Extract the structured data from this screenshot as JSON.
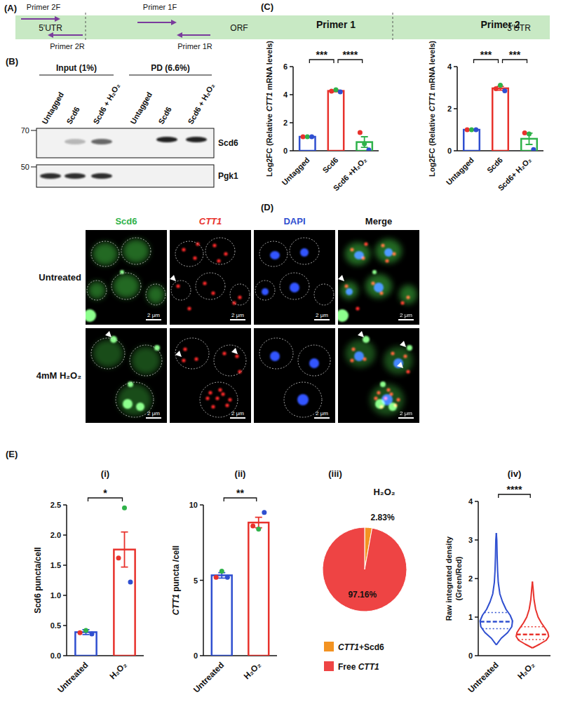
{
  "panels": {
    "A": {
      "letter": "(A)",
      "regions": [
        "5'UTR",
        "ORF",
        "3'UTR"
      ],
      "primers": [
        "Primer 2F",
        "Primer 1F",
        "Primer 2R",
        "Primer 1R"
      ]
    },
    "B": {
      "letter": "(B)",
      "groups": [
        {
          "label": "Input (1%)",
          "lanes": [
            "Untagged",
            "Scd6",
            "Scd6 + H₂O₂"
          ]
        },
        {
          "label": "PD (6.6%)",
          "lanes": [
            "Untagged",
            "Scd6",
            "Scd6 + H₂O₂"
          ]
        }
      ],
      "markers": [
        70,
        50
      ],
      "blots": [
        "Scd6",
        "Pgk1"
      ]
    },
    "C": {
      "letter": "(C)"
    },
    "D": {
      "letter": "(D)",
      "columns": [
        "Scd6",
        "CTT1",
        "DAPI",
        "Merge"
      ],
      "rows": [
        "Untreated",
        "4mM H₂O₂"
      ],
      "scale_bar": "2 μm"
    },
    "E": {
      "letter": "(E)"
    }
  },
  "chart_data": [
    {
      "type": "bar",
      "title": "Primer 1",
      "y_label": "Log2FC (Relative CTT1 mRNA levels)",
      "categories": [
        "Untagged",
        "Scd6",
        "Scd6 +H₂O₂"
      ],
      "values": [
        1,
        4.27,
        0.62
      ],
      "errors": [
        0.01,
        0.06,
        0.38
      ],
      "colors": [
        "#2f4fd0",
        "#e8322c",
        "#2fb24a"
      ],
      "replicates": [
        {
          "color": "#e8322c",
          "values": [
            1,
            4.25,
            1.3
          ]
        },
        {
          "color": "#2fb24a",
          "values": [
            1,
            4.35,
            0.5
          ]
        },
        {
          "color": "#2f4fd0",
          "values": [
            1,
            4.2,
            0.06
          ]
        }
      ],
      "ylim": [
        0,
        6
      ],
      "yticks": [
        0,
        2,
        4,
        6
      ],
      "annotations": [
        {
          "text": "***",
          "between": [
            "Untagged",
            "Scd6"
          ]
        },
        {
          "text": "****",
          "between": [
            "Scd6",
            "Scd6 +H₂O₂"
          ]
        }
      ]
    },
    {
      "type": "bar",
      "title": "Primer 2",
      "y_label": "Log2FC (Relative CTT1 mRNA levels)",
      "categories": [
        "Untagged",
        "Scd6",
        "Scd6+ H₂O₂"
      ],
      "values": [
        1,
        2.97,
        0.57
      ],
      "errors": [
        0.01,
        0.09,
        0.27
      ],
      "colors": [
        "#2f4fd0",
        "#e8322c",
        "#2fb24a"
      ],
      "replicates": [
        {
          "color": "#e8322c",
          "values": [
            1,
            2.95,
            0.85
          ]
        },
        {
          "color": "#2fb24a",
          "values": [
            1,
            3.12,
            0.8
          ]
        },
        {
          "color": "#2f4fd0",
          "values": [
            1,
            2.85,
            0.06
          ]
        }
      ],
      "ylim": [
        0,
        4
      ],
      "yticks": [
        0,
        2,
        4
      ],
      "annotations": [
        {
          "text": "***",
          "between": [
            "Untagged",
            "Scd6"
          ]
        },
        {
          "text": "***",
          "between": [
            "Scd6",
            "Scd6+ H₂O₂"
          ]
        }
      ]
    },
    {
      "type": "bar",
      "title": "(i)",
      "y_label": "Scd6 puncta/cell",
      "categories": [
        "Untreated",
        "H₂O₂"
      ],
      "values": [
        0.39,
        1.76
      ],
      "errors": [
        0.04,
        0.29
      ],
      "colors": [
        "#2f4fd0",
        "#e8322c"
      ],
      "replicates": [
        {
          "color": "#e8322c",
          "values": [
            0.38,
            1.62
          ]
        },
        {
          "color": "#2fb24a",
          "values": [
            0.42,
            2.45
          ]
        },
        {
          "color": "#2f4fd0",
          "values": [
            0.36,
            1.22
          ]
        }
      ],
      "ylim": [
        0,
        2.5
      ],
      "yticks": [
        {
          "value": 0,
          "label": "0.0"
        },
        0.5,
        {
          "value": 1,
          "label": "1.0"
        },
        1.5,
        {
          "value": 2,
          "label": "2.0"
        },
        2.5
      ],
      "annotations": [
        {
          "text": "*",
          "between": [
            "Untreated",
            "H₂O₂"
          ]
        }
      ]
    },
    {
      "type": "bar",
      "title": "(ii)",
      "y_label": "CTT1 puncta /cell",
      "categories": [
        "Untreated",
        "H₂O₂"
      ],
      "values": [
        5.33,
        8.83
      ],
      "errors": [
        0.18,
        0.35
      ],
      "colors": [
        "#2f4fd0",
        "#e8322c"
      ],
      "replicates": [
        {
          "color": "#e8322c",
          "values": [
            5.2,
            8.6
          ]
        },
        {
          "color": "#2fb24a",
          "values": [
            5.6,
            8.4
          ]
        },
        {
          "color": "#2f4fd0",
          "values": [
            5.2,
            9.5
          ]
        }
      ],
      "ylim": [
        0,
        10
      ],
      "yticks": [
        0,
        5,
        10
      ],
      "annotations": [
        {
          "text": "**",
          "between": [
            "Untreated",
            "H₂O₂"
          ]
        }
      ]
    },
    {
      "type": "pie",
      "title": "(iii)",
      "subtitle": "H₂O₂",
      "categories": [
        "CTT1+Scd6",
        "Free CTT1"
      ],
      "values": [
        2.83,
        97.16
      ],
      "value_labels": [
        "2.83%",
        "97.16%"
      ],
      "colors": [
        "#f39322",
        "#ee4444"
      ],
      "legend": "bottom",
      "data_labels": true
    },
    {
      "type": "violin",
      "title": "(iv)",
      "y_label": "Raw integrated density (Green/Red)",
      "categories": [
        "Untreated",
        "H₂O₂"
      ],
      "colors": [
        "#2f4fd0",
        "#e8322c"
      ],
      "distributions": [
        {
          "q1": 0.7,
          "median": 0.88,
          "q3": 1.12,
          "density_y": [
            0.28,
            0.45,
            0.6,
            0.75,
            0.9,
            1.05,
            1.2,
            1.4,
            1.6,
            1.9,
            2.2,
            2.6,
            3.0,
            3.18
          ],
          "density": [
            0,
            0.3,
            0.7,
            0.95,
            1,
            0.85,
            0.6,
            0.38,
            0.22,
            0.12,
            0.08,
            0.05,
            0.03,
            0
          ]
        },
        {
          "q1": 0.42,
          "median": 0.55,
          "q3": 0.75,
          "density_y": [
            0.2,
            0.3,
            0.4,
            0.5,
            0.6,
            0.7,
            0.85,
            1.0,
            1.2,
            1.45,
            1.7,
            1.92
          ],
          "density": [
            0,
            0.45,
            0.85,
            1,
            0.95,
            0.8,
            0.55,
            0.35,
            0.2,
            0.1,
            0.05,
            0
          ]
        }
      ],
      "ylim": [
        0,
        4
      ],
      "yticks": [
        0,
        1,
        2,
        3,
        4
      ],
      "annotations": [
        {
          "text": "****",
          "between": [
            "Untreated",
            "H₂O₂"
          ]
        }
      ]
    }
  ]
}
